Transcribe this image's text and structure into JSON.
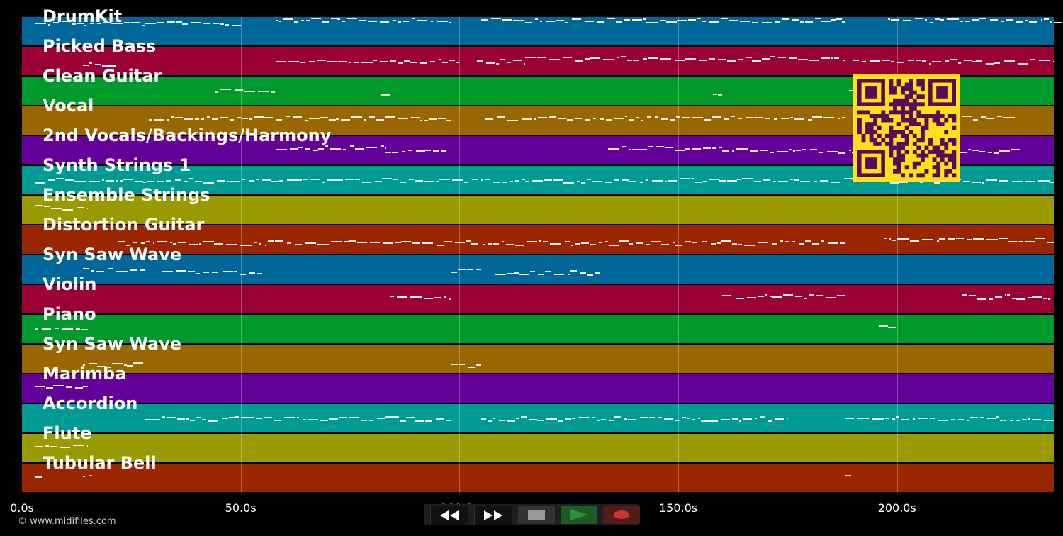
{
  "tracks": [
    {
      "name": "DrumKit",
      "color": "#00679a"
    },
    {
      "name": "Picked Bass",
      "color": "#9a0033"
    },
    {
      "name": "Clean Guitar",
      "color": "#009a2c"
    },
    {
      "name": "Vocal",
      "color": "#9a6600"
    },
    {
      "name": "2nd Vocals/Backings/Harmony",
      "color": "#63009a"
    },
    {
      "name": "Synth Strings 1",
      "color": "#009a94"
    },
    {
      "name": "Ensemble Strings",
      "color": "#999900"
    },
    {
      "name": "Distortion Guitar",
      "color": "#9a2600"
    },
    {
      "name": "Syn Saw Wave",
      "color": "#00679a"
    },
    {
      "name": "Violin",
      "color": "#9a0033"
    },
    {
      "name": "Piano",
      "color": "#009a2c"
    },
    {
      "name": "Syn Saw Wave",
      "color": "#9a6600"
    },
    {
      "name": "Marimba",
      "color": "#63009a"
    },
    {
      "name": "Accordion",
      "color": "#009a94"
    },
    {
      "name": "Flute",
      "color": "#999900"
    },
    {
      "name": "Tubular Bell",
      "color": "#9a2600"
    }
  ],
  "timeline": {
    "range_seconds": [
      0,
      236
    ],
    "ticks": [
      {
        "value": 0,
        "label": "0.0s"
      },
      {
        "value": 50,
        "label": "50.0s"
      },
      {
        "value": 100,
        "label": "100.0s"
      },
      {
        "value": 150,
        "label": "150.0s"
      },
      {
        "value": 200,
        "label": "200.0s"
      }
    ]
  },
  "note_segments": [
    {
      "track": 0,
      "segments": [
        [
          3,
          50,
          0.2
        ],
        [
          58,
          98,
          0.1
        ],
        [
          105,
          188,
          0.1
        ],
        [
          198,
          238,
          0.1
        ]
      ]
    },
    {
      "track": 1,
      "segments": [
        [
          14,
          22,
          0.6
        ],
        [
          58,
          100,
          0.5
        ],
        [
          104,
          115,
          0.5
        ],
        [
          115,
          188,
          0.4
        ],
        [
          190,
          236,
          0.5
        ]
      ]
    },
    {
      "track": 2,
      "segments": [
        [
          44,
          58,
          0.5
        ],
        [
          82,
          84,
          0.6
        ],
        [
          158,
          160,
          0.6
        ],
        [
          189,
          191,
          0.5
        ]
      ]
    },
    {
      "track": 3,
      "segments": [
        [
          29,
          98,
          0.4
        ],
        [
          106,
          188,
          0.4
        ],
        [
          190,
          227,
          0.4
        ]
      ]
    },
    {
      "track": 4,
      "segments": [
        [
          58,
          83,
          0.4
        ],
        [
          83,
          97,
          0.5
        ],
        [
          134,
          160,
          0.4
        ],
        [
          160,
          188,
          0.5
        ],
        [
          189,
          228,
          0.5
        ]
      ]
    },
    {
      "track": 5,
      "segments": [
        [
          3,
          236,
          0.5
        ]
      ]
    },
    {
      "track": 6,
      "segments": [
        [
          3,
          15,
          0.4
        ]
      ]
    },
    {
      "track": 7,
      "segments": [
        [
          22,
          188,
          0.6
        ],
        [
          197,
          236,
          0.5
        ]
      ]
    },
    {
      "track": 8,
      "segments": [
        [
          14,
          28,
          0.5
        ],
        [
          32,
          55,
          0.6
        ],
        [
          98,
          105,
          0.5
        ],
        [
          108,
          132,
          0.6
        ]
      ]
    },
    {
      "track": 9,
      "segments": [
        [
          84,
          98,
          0.4
        ],
        [
          160,
          188,
          0.4
        ],
        [
          215,
          235,
          0.4
        ]
      ]
    },
    {
      "track": 10,
      "segments": [
        [
          3,
          15,
          0.5
        ],
        [
          196,
          200,
          0.4
        ]
      ]
    },
    {
      "track": 11,
      "segments": [
        [
          14,
          28,
          0.7
        ],
        [
          98,
          105,
          0.7
        ]
      ]
    },
    {
      "track": 12,
      "segments": [
        [
          3,
          15,
          0.4
        ]
      ]
    },
    {
      "track": 13,
      "segments": [
        [
          28,
          98,
          0.5
        ],
        [
          105,
          175,
          0.5
        ],
        [
          188,
          236,
          0.5
        ]
      ]
    },
    {
      "track": 14,
      "segments": [
        [
          3,
          15,
          0.4
        ]
      ]
    },
    {
      "track": 15,
      "segments": [
        [
          3,
          5,
          0.4
        ],
        [
          14,
          16,
          0.4
        ],
        [
          188,
          190,
          0.4
        ]
      ]
    }
  ],
  "qr_code": {
    "color": "#ffe11a",
    "module_color": "#5a0a5a"
  },
  "transport": {
    "rewind": {
      "icon": "rewind-icon"
    },
    "forward": {
      "icon": "fast-forward-icon"
    },
    "stop": {
      "icon": "stop-icon"
    },
    "play": {
      "icon": "play-icon",
      "color": "#2f8f3a"
    },
    "record": {
      "icon": "record-icon",
      "color": "#cc3333"
    }
  },
  "copyright": "© www.midifiles.com"
}
